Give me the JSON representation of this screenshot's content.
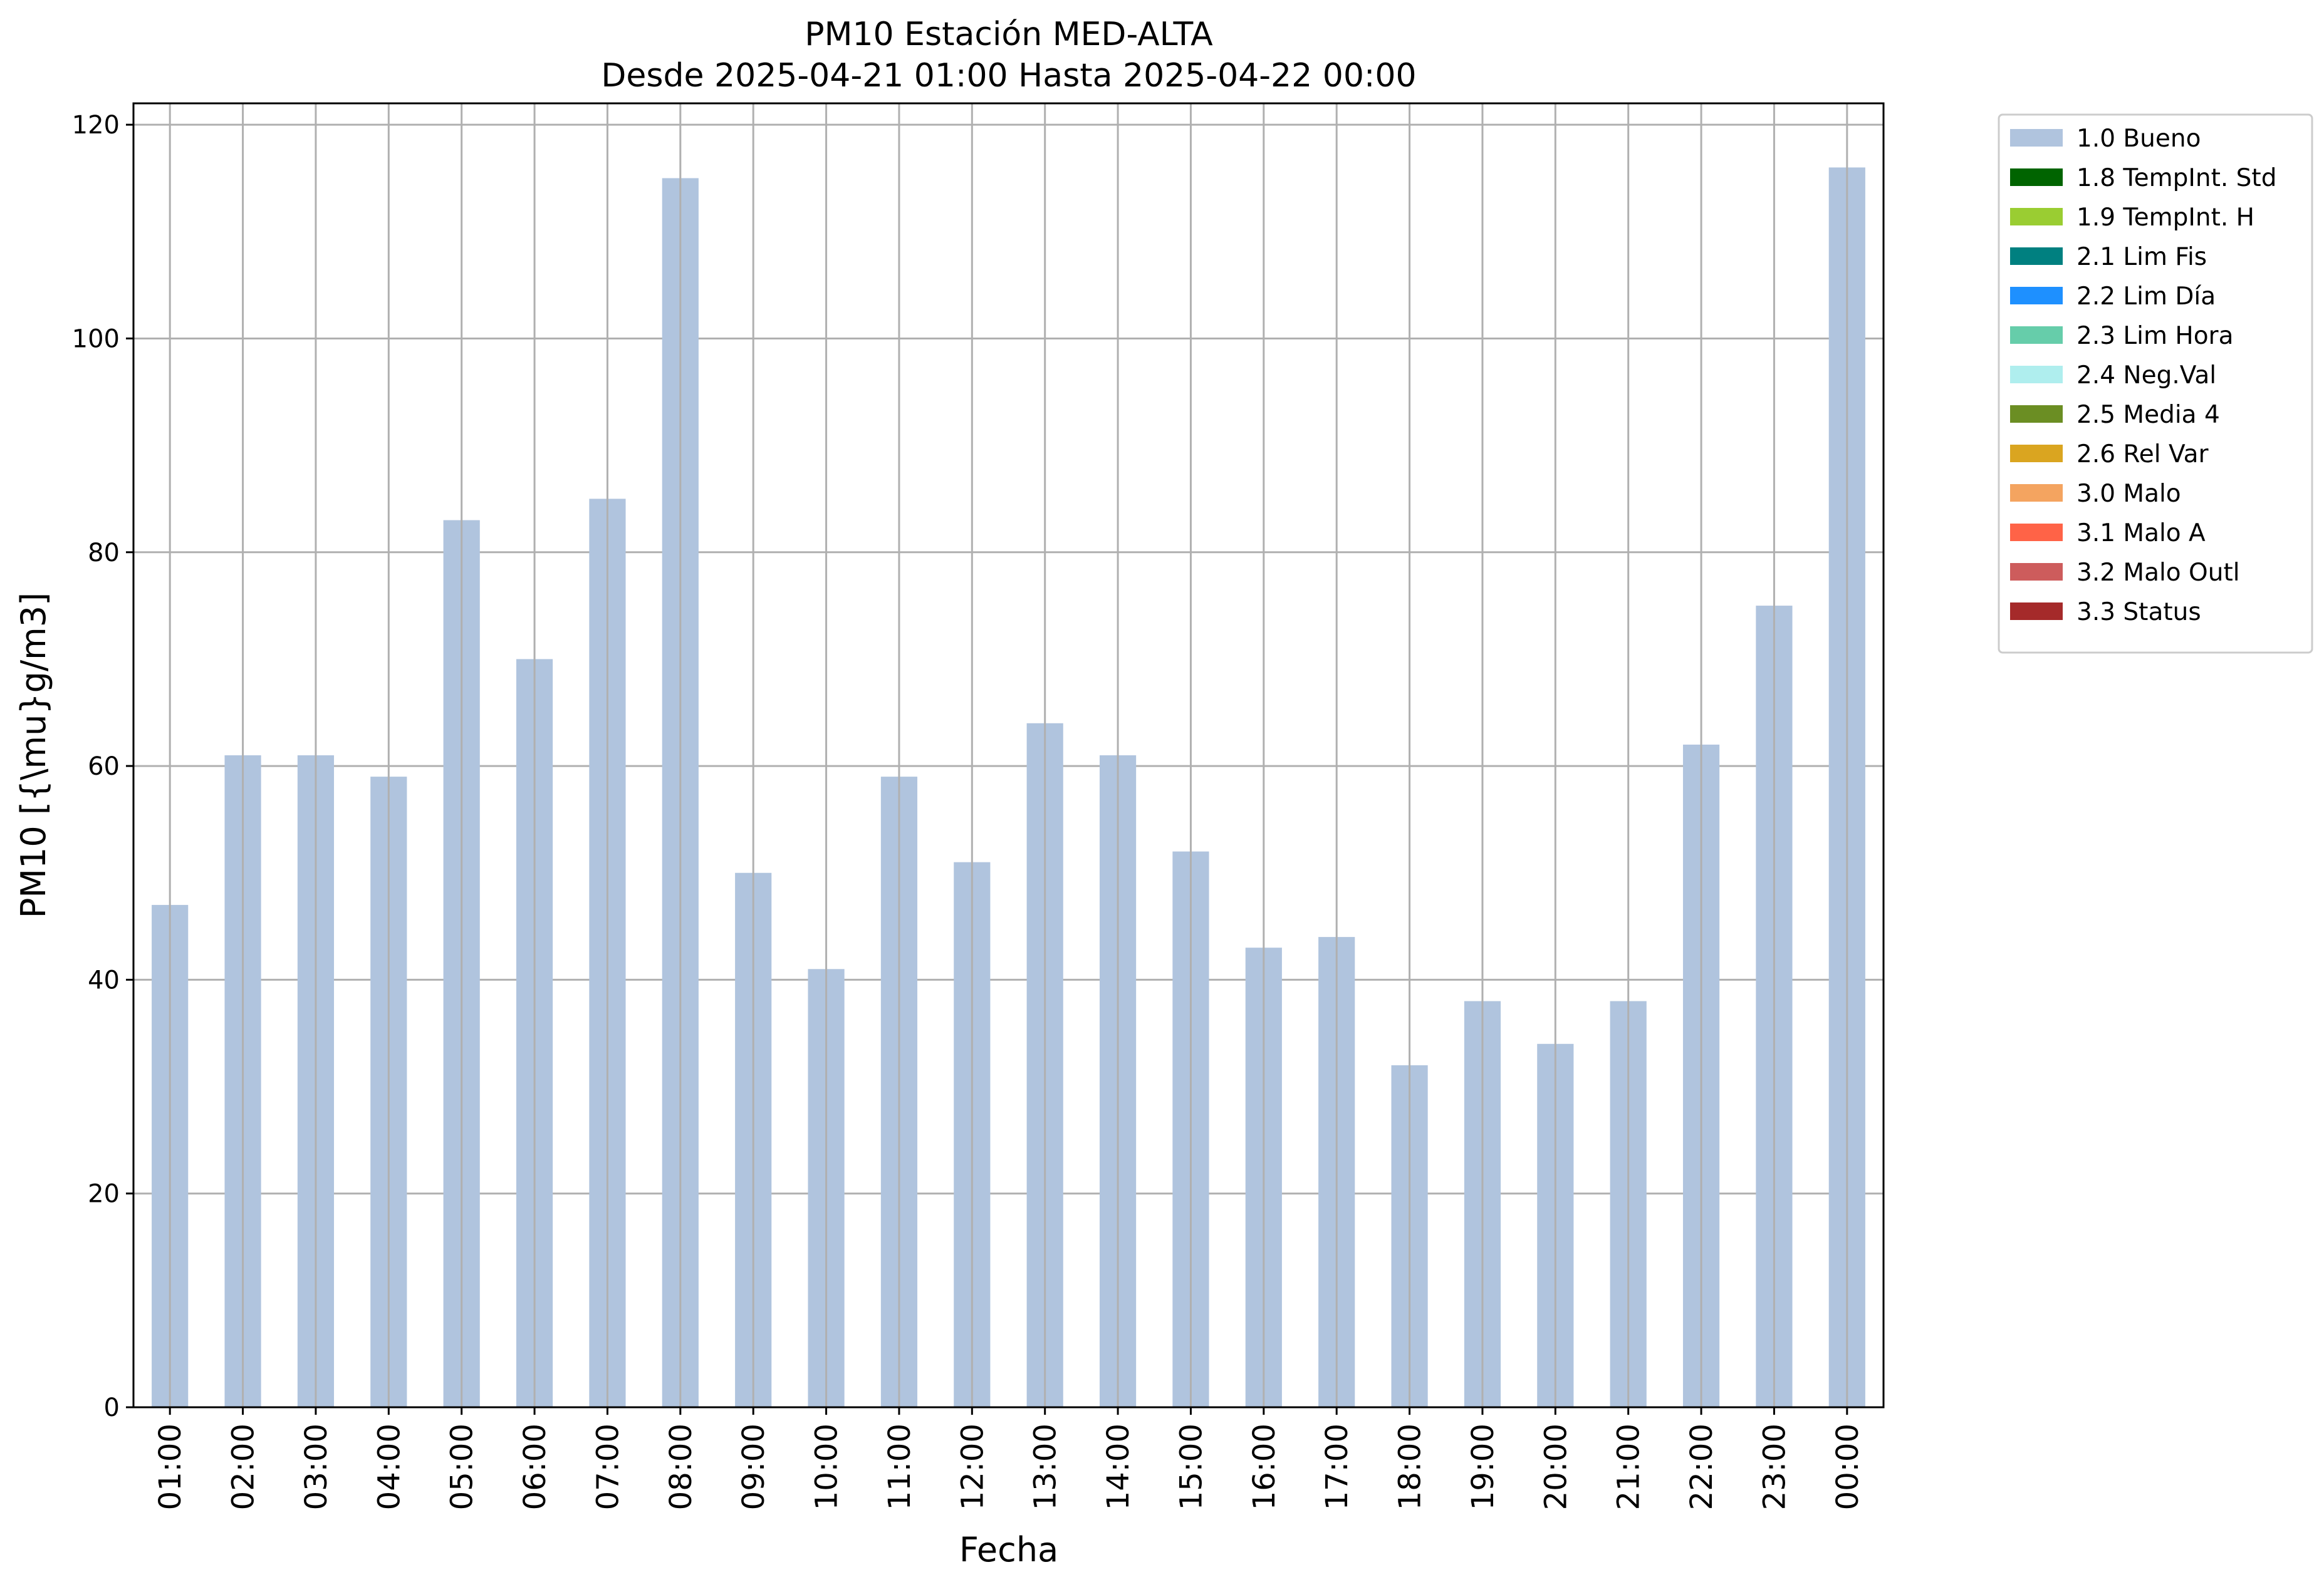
{
  "chart_data": {
    "type": "bar",
    "title": "PM10 Estación MED-ALTA",
    "subtitle": "Desde 2025-04-21 01:00 Hasta 2025-04-22 00:00",
    "xlabel": "Fecha",
    "ylabel": "PM10 [{\\mu}g/m3]",
    "ylim": [
      0,
      122
    ],
    "yticks": [
      0,
      20,
      40,
      60,
      80,
      100,
      120
    ],
    "grid": true,
    "legend_position": "outside-right",
    "categories": [
      "01:00",
      "02:00",
      "03:00",
      "04:00",
      "05:00",
      "06:00",
      "07:00",
      "08:00",
      "09:00",
      "10:00",
      "11:00",
      "12:00",
      "13:00",
      "14:00",
      "15:00",
      "16:00",
      "17:00",
      "18:00",
      "19:00",
      "20:00",
      "21:00",
      "22:00",
      "23:00",
      "00:00"
    ],
    "series": [
      {
        "name": "1.0 Bueno",
        "color": "#b0c4de",
        "values": [
          47,
          61,
          61,
          59,
          83,
          70,
          85,
          115,
          50,
          41,
          59,
          51,
          64,
          61,
          52,
          43,
          44,
          32,
          38,
          34,
          38,
          62,
          75,
          116
        ]
      }
    ],
    "legend": [
      {
        "label": "1.0 Bueno",
        "color": "#b0c4de"
      },
      {
        "label": "1.8 TempInt. Std",
        "color": "#006400"
      },
      {
        "label": "1.9 TempInt. H",
        "color": "#9acd32"
      },
      {
        "label": "2.1 Lim Fis",
        "color": "#008080"
      },
      {
        "label": "2.2 Lim Día",
        "color": "#1e90ff"
      },
      {
        "label": "2.3 Lim Hora",
        "color": "#66cdaa"
      },
      {
        "label": "2.4 Neg.Val",
        "color": "#afeeee"
      },
      {
        "label": "2.5 Media 4",
        "color": "#6b8e23"
      },
      {
        "label": "2.6 Rel Var",
        "color": "#daa520"
      },
      {
        "label": "3.0 Malo",
        "color": "#f4a460"
      },
      {
        "label": "3.1 Malo A",
        "color": "#ff6347"
      },
      {
        "label": "3.2 Malo Outl",
        "color": "#cd5c5c"
      },
      {
        "label": "3.3 Status",
        "color": "#a52a2a"
      }
    ]
  }
}
